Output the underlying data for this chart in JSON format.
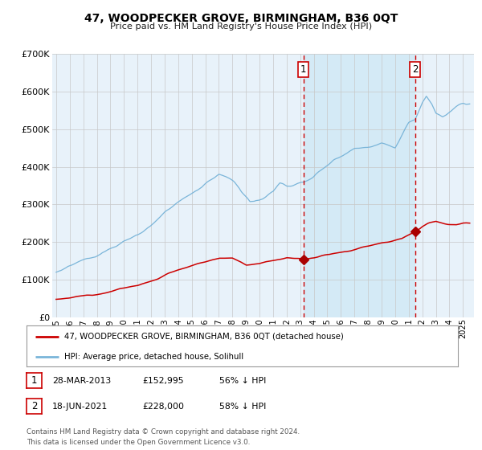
{
  "title": "47, WOODPECKER GROVE, BIRMINGHAM, B36 0QT",
  "subtitle": "Price paid vs. HM Land Registry's House Price Index (HPI)",
  "ylim": [
    0,
    700000
  ],
  "yticks": [
    0,
    100000,
    200000,
    300000,
    400000,
    500000,
    600000,
    700000
  ],
  "ytick_labels": [
    "£0",
    "£100K",
    "£200K",
    "£300K",
    "£400K",
    "£500K",
    "£600K",
    "£700K"
  ],
  "hpi_color": "#7ab5d9",
  "hpi_fill_color": "#ddeef8",
  "price_color": "#cc0000",
  "marker_color": "#aa0000",
  "vline_color": "#cc0000",
  "grid_color": "#c8c8c8",
  "background_color": "#ffffff",
  "plot_bg_color": "#e8f2fa",
  "sale1_x": 2013.23,
  "sale1_y": 152995,
  "sale2_x": 2021.46,
  "sale2_y": 228000,
  "legend_line1": "47, WOODPECKER GROVE, BIRMINGHAM, B36 0QT (detached house)",
  "legend_line2": "HPI: Average price, detached house, Solihull",
  "table_row1": [
    "1",
    "28-MAR-2013",
    "£152,995",
    "56% ↓ HPI"
  ],
  "table_row2": [
    "2",
    "18-JUN-2021",
    "£228,000",
    "58% ↓ HPI"
  ],
  "footnote": "Contains HM Land Registry data © Crown copyright and database right 2024.\nThis data is licensed under the Open Government Licence v3.0.",
  "shade_start": 2013.23,
  "shade_end": 2021.46,
  "xmin": 1994.7,
  "xmax": 2025.8
}
